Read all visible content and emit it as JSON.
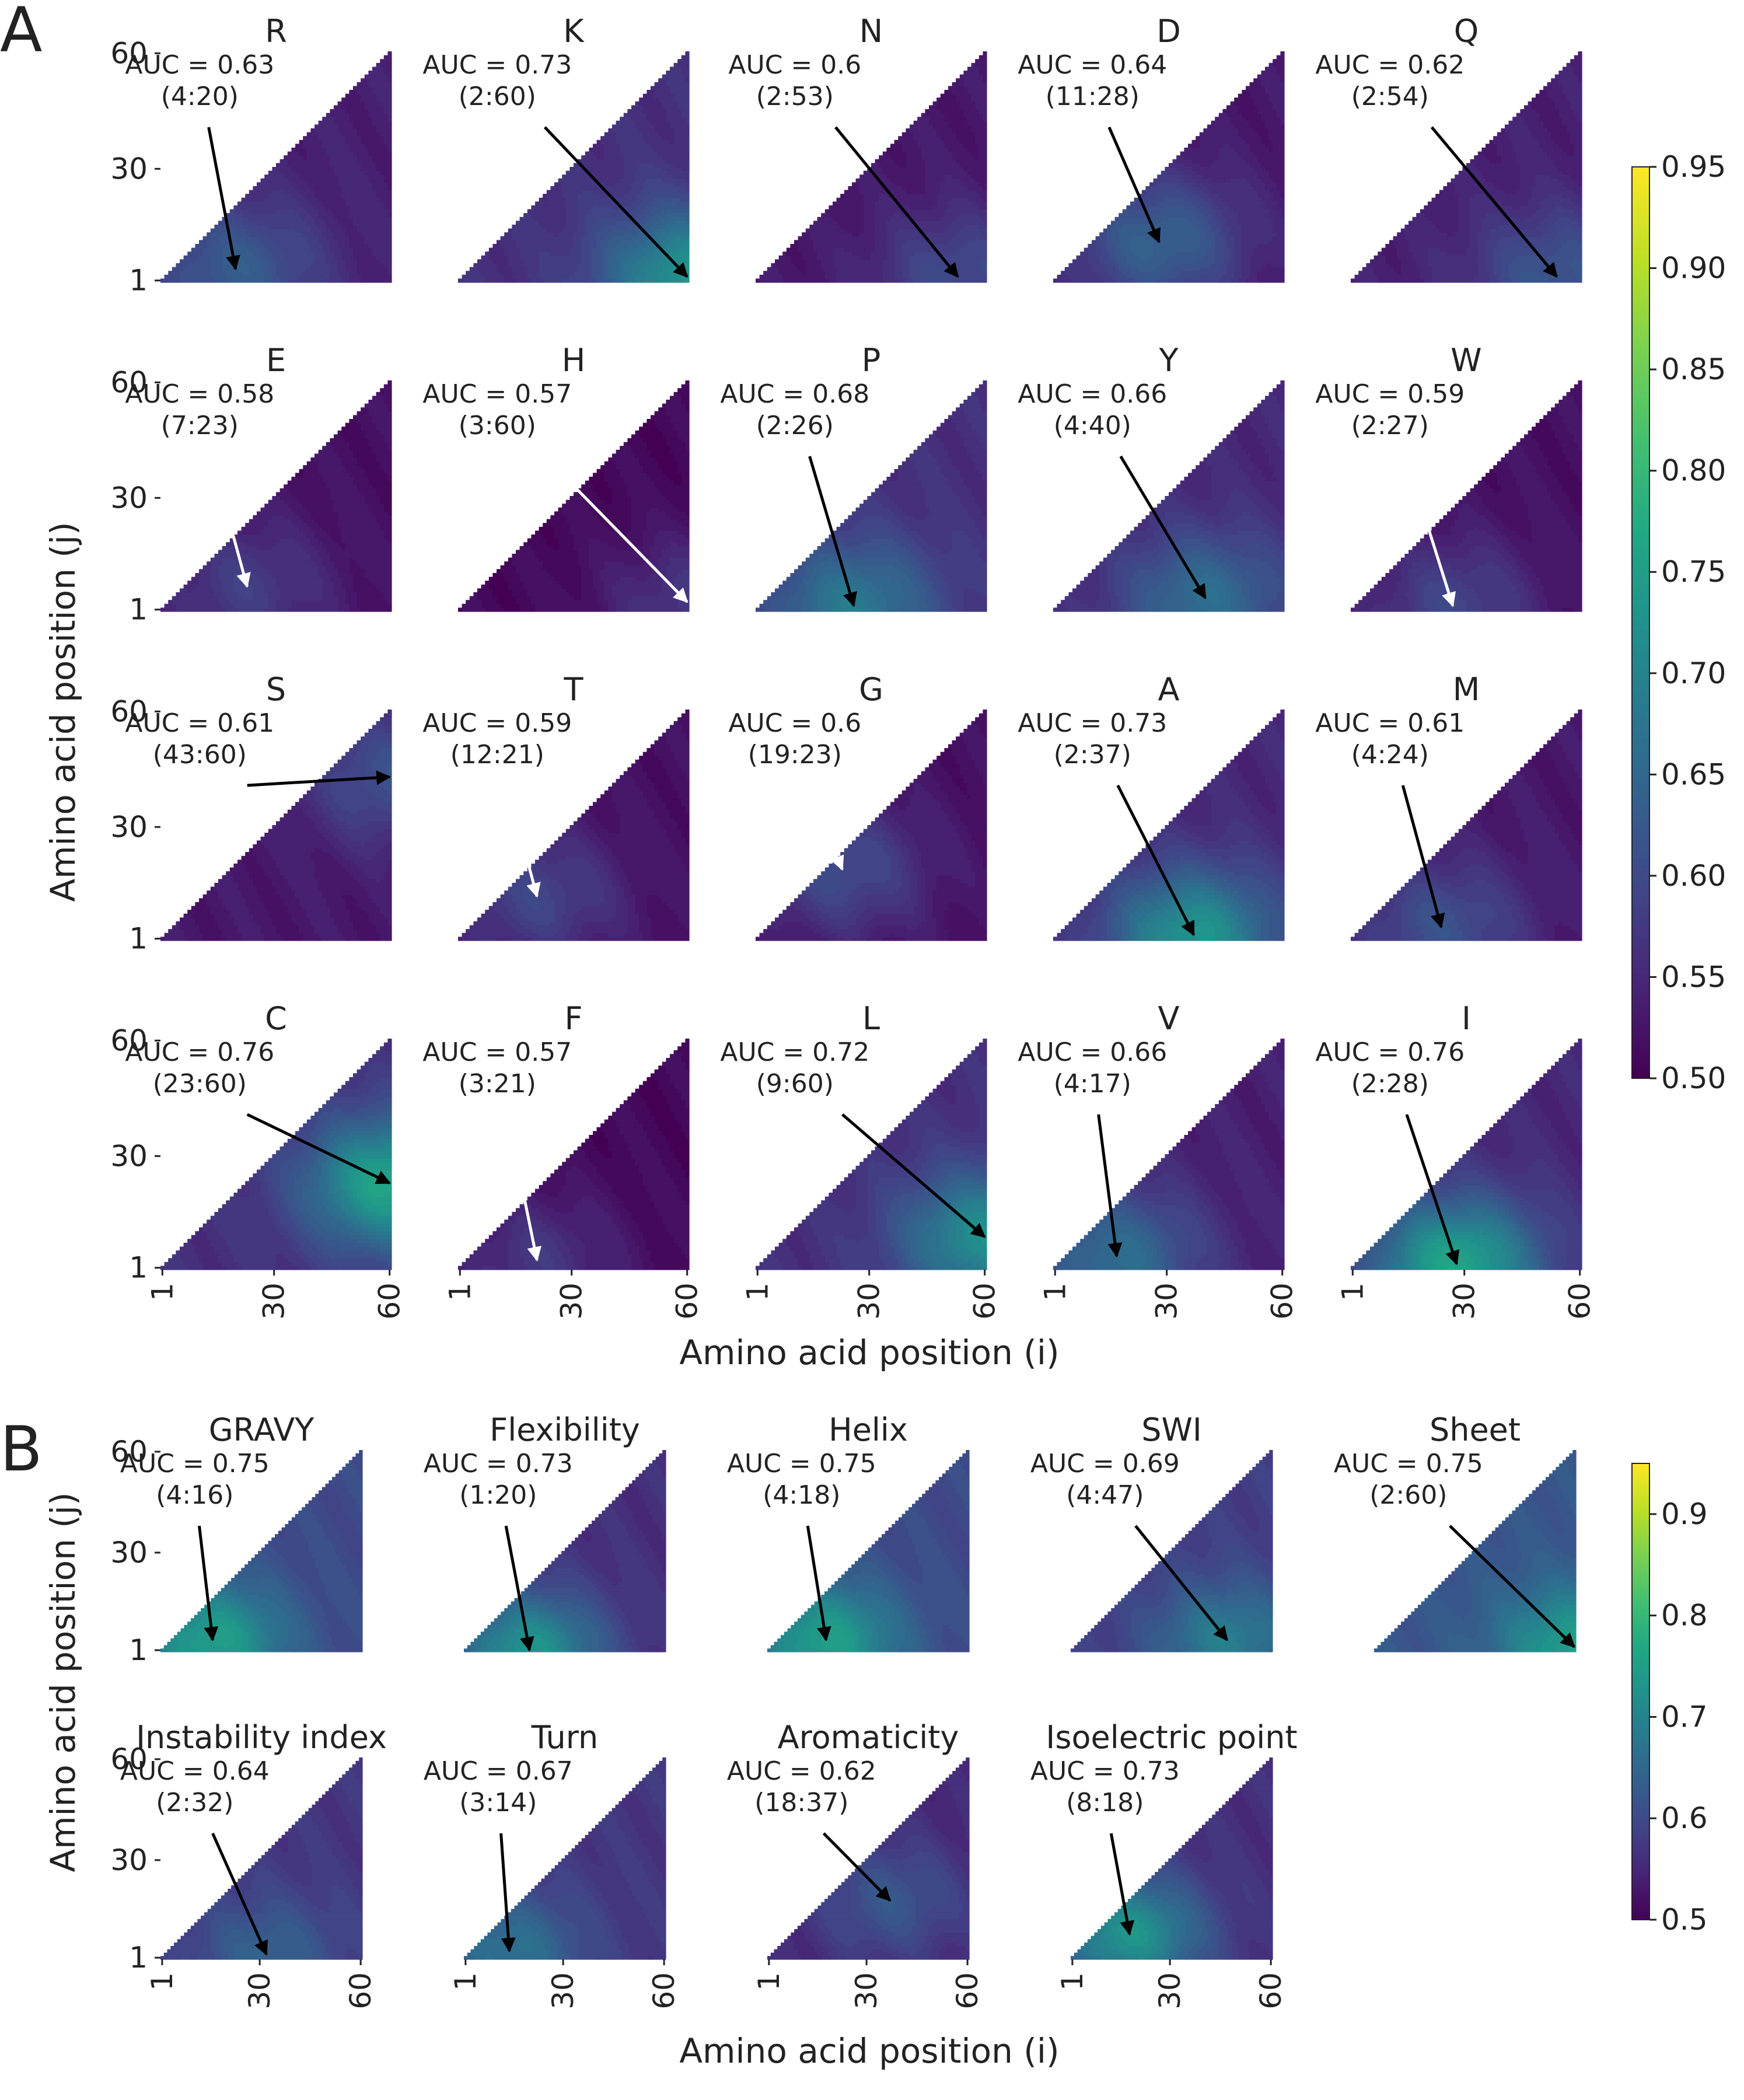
{
  "panel_labels": [
    "A",
    "B"
  ],
  "colormap": [
    "#440154",
    "#482475",
    "#414487",
    "#355f8d",
    "#2a788e",
    "#21918c",
    "#22a884",
    "#44bf70",
    "#7ad151",
    "#bddf26",
    "#fde725"
  ],
  "chart_data": [
    {
      "type": "heatmap",
      "panel": "A",
      "xlabel": "Amino acid position (i)",
      "ylabel": "Amino acid position (j)",
      "x_ticks": [
        "1",
        "30",
        "60"
      ],
      "y_ticks": [
        "1",
        "30",
        "60"
      ],
      "colorbar": {
        "min": 0.5,
        "max": 0.95,
        "ticks": [
          "0.50",
          "0.55",
          "0.60",
          "0.65",
          "0.70",
          "0.75",
          "0.80",
          "0.85",
          "0.90",
          "0.95"
        ]
      },
      "subplots": [
        {
          "title": "R",
          "auc": "AUC = 0.63",
          "window": "(4:20)",
          "best": [
            4,
            20
          ],
          "base": 0.54,
          "arrow": "black"
        },
        {
          "title": "K",
          "auc": "AUC = 0.73",
          "window": "(2:60)",
          "best": [
            2,
            60
          ],
          "base": 0.56,
          "arrow": "black"
        },
        {
          "title": "N",
          "auc": "AUC = 0.6",
          "window": "(2:53)",
          "best": [
            2,
            53
          ],
          "base": 0.53,
          "arrow": "black"
        },
        {
          "title": "D",
          "auc": "AUC = 0.64",
          "window": "(11:28)",
          "best": [
            11,
            28
          ],
          "base": 0.53,
          "arrow": "black"
        },
        {
          "title": "Q",
          "auc": "AUC = 0.62",
          "window": "(2:54)",
          "best": [
            2,
            54
          ],
          "base": 0.54,
          "arrow": "black"
        },
        {
          "title": "E",
          "auc": "AUC = 0.58",
          "window": "(7:23)",
          "best": [
            7,
            23
          ],
          "base": 0.52,
          "arrow": "white"
        },
        {
          "title": "H",
          "auc": "AUC = 0.57",
          "window": "(3:60)",
          "best": [
            3,
            60
          ],
          "base": 0.51,
          "arrow": "white"
        },
        {
          "title": "P",
          "auc": "AUC = 0.68",
          "window": "(2:26)",
          "best": [
            2,
            26
          ],
          "base": 0.56,
          "arrow": "black"
        },
        {
          "title": "Y",
          "auc": "AUC = 0.66",
          "window": "(4:40)",
          "best": [
            4,
            40
          ],
          "base": 0.55,
          "arrow": "black"
        },
        {
          "title": "W",
          "auc": "AUC = 0.59",
          "window": "(2:27)",
          "best": [
            2,
            27
          ],
          "base": 0.52,
          "arrow": "white"
        },
        {
          "title": "S",
          "auc": "AUC = 0.61",
          "window": "(43:60)",
          "best": [
            43,
            60
          ],
          "base": 0.53,
          "arrow": "black"
        },
        {
          "title": "T",
          "auc": "AUC = 0.59",
          "window": "(12:21)",
          "best": [
            12,
            21
          ],
          "base": 0.52,
          "arrow": "white"
        },
        {
          "title": "G",
          "auc": "AUC = 0.6",
          "window": "(19:23)",
          "best": [
            19,
            23
          ],
          "base": 0.52,
          "arrow": "white"
        },
        {
          "title": "A",
          "auc": "AUC = 0.73",
          "window": "(2:37)",
          "best": [
            2,
            37
          ],
          "base": 0.55,
          "arrow": "black"
        },
        {
          "title": "M",
          "auc": "AUC = 0.61",
          "window": "(4:24)",
          "best": [
            4,
            24
          ],
          "base": 0.53,
          "arrow": "black"
        },
        {
          "title": "C",
          "auc": "AUC = 0.76",
          "window": "(23:60)",
          "best": [
            23,
            60
          ],
          "base": 0.56,
          "arrow": "black"
        },
        {
          "title": "F",
          "auc": "AUC = 0.57",
          "window": "(3:21)",
          "best": [
            3,
            21
          ],
          "base": 0.51,
          "arrow": "white"
        },
        {
          "title": "L",
          "auc": "AUC = 0.72",
          "window": "(9:60)",
          "best": [
            9,
            60
          ],
          "base": 0.56,
          "arrow": "black"
        },
        {
          "title": "V",
          "auc": "AUC = 0.66",
          "window": "(4:17)",
          "best": [
            4,
            17
          ],
          "base": 0.54,
          "arrow": "black"
        },
        {
          "title": "I",
          "auc": "AUC = 0.76",
          "window": "(2:28)",
          "best": [
            2,
            28
          ],
          "base": 0.55,
          "arrow": "black"
        }
      ]
    },
    {
      "type": "heatmap",
      "panel": "B",
      "xlabel": "Amino acid position (i)",
      "ylabel": "Amino acid position (j)",
      "x_ticks": [
        "1",
        "30",
        "60"
      ],
      "y_ticks": [
        "1",
        "30",
        "60"
      ],
      "colorbar": {
        "min": 0.5,
        "max": 0.95,
        "ticks": [
          "0.5",
          "0.6",
          "0.7",
          "0.8",
          "0.9"
        ]
      },
      "subplots": [
        {
          "title": "GRAVY",
          "auc": "AUC = 0.75",
          "window": "(4:16)",
          "best": [
            4,
            16
          ],
          "base": 0.6,
          "arrow": "black"
        },
        {
          "title": "Flexibility",
          "auc": "AUC = 0.73",
          "window": "(1:20)",
          "best": [
            1,
            20
          ],
          "base": 0.56,
          "arrow": "black"
        },
        {
          "title": "Helix",
          "auc": "AUC = 0.75",
          "window": "(4:18)",
          "best": [
            4,
            18
          ],
          "base": 0.6,
          "arrow": "black"
        },
        {
          "title": "SWI",
          "auc": "AUC = 0.69",
          "window": "(4:47)",
          "best": [
            4,
            47
          ],
          "base": 0.58,
          "arrow": "black"
        },
        {
          "title": "Sheet",
          "auc": "AUC = 0.75",
          "window": "(2:60)",
          "best": [
            2,
            60
          ],
          "base": 0.62,
          "arrow": "black"
        },
        {
          "title": "Instability index",
          "auc": "AUC = 0.64",
          "window": "(2:32)",
          "best": [
            2,
            32
          ],
          "base": 0.57,
          "arrow": "black"
        },
        {
          "title": "Turn",
          "auc": "AUC = 0.67",
          "window": "(3:14)",
          "best": [
            3,
            14
          ],
          "base": 0.57,
          "arrow": "black"
        },
        {
          "title": "Aromaticity",
          "auc": "AUC = 0.62",
          "window": "(18:37)",
          "best": [
            18,
            37
          ],
          "base": 0.55,
          "arrow": "black"
        },
        {
          "title": "Isoelectric point",
          "auc": "AUC = 0.73",
          "window": "(8:18)",
          "best": [
            8,
            18
          ],
          "base": 0.56,
          "arrow": "black"
        }
      ]
    }
  ]
}
